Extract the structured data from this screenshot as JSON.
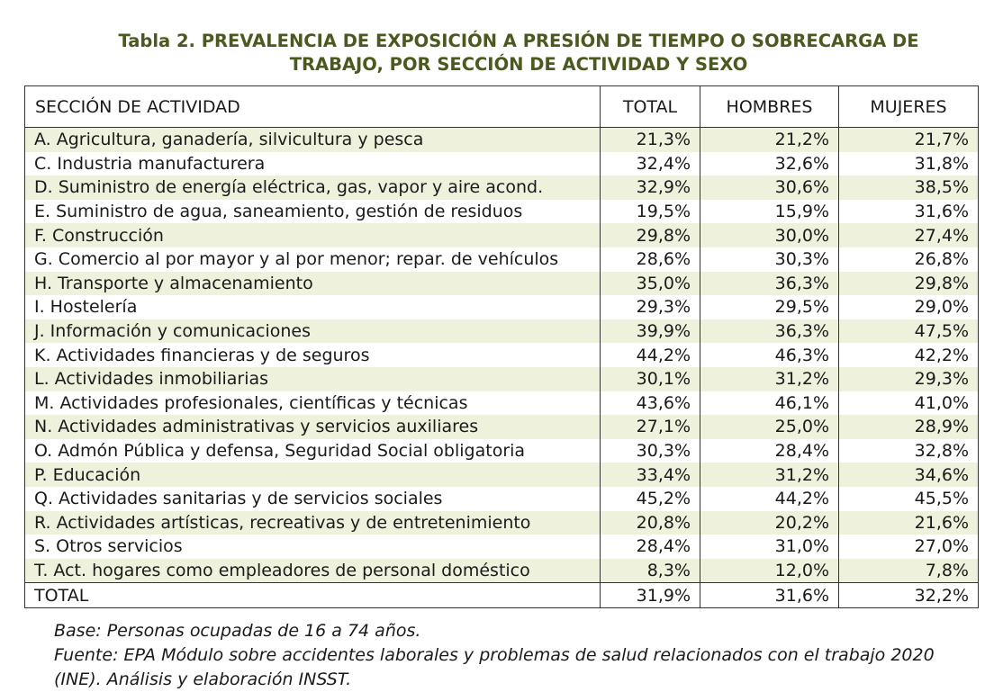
{
  "title": {
    "line1": "Tabla 2. PREVALENCIA DE EXPOSICIÓN A PRESIÓN DE TIEMPO O SOBRECARGA DE",
    "line2": "TRABAJO, POR SECCIÓN DE ACTIVIDAD Y SEXO"
  },
  "headers": [
    "SECCIÓN DE ACTIVIDAD",
    "TOTAL",
    "HOMBRES",
    "MUJERES"
  ],
  "rows": [
    {
      "label": "A. Agricultura, ganadería, silvicultura y pesca",
      "total": "21,3%",
      "hombres": "21,2%",
      "mujeres": "21,7%"
    },
    {
      "label": "C. Industria manufacturera",
      "total": "32,4%",
      "hombres": "32,6%",
      "mujeres": "31,8%"
    },
    {
      "label": "D. Suministro de energía eléctrica, gas, vapor y aire acond.",
      "total": "32,9%",
      "hombres": "30,6%",
      "mujeres": "38,5%"
    },
    {
      "label": "E. Suministro de agua, saneamiento, gestión de residuos",
      "total": "19,5%",
      "hombres": "15,9%",
      "mujeres": "31,6%"
    },
    {
      "label": "F. Construcción",
      "total": "29,8%",
      "hombres": "30,0%",
      "mujeres": "27,4%"
    },
    {
      "label": "G. Comercio al por mayor y al por menor; repar. de vehículos",
      "total": "28,6%",
      "hombres": "30,3%",
      "mujeres": "26,8%"
    },
    {
      "label": "H. Transporte y almacenamiento",
      "total": "35,0%",
      "hombres": "36,3%",
      "mujeres": "29,8%"
    },
    {
      "label": "I. Hostelería",
      "total": "29,3%",
      "hombres": "29,5%",
      "mujeres": "29,0%"
    },
    {
      "label": "J. Información y comunicaciones",
      "total": "39,9%",
      "hombres": "36,3%",
      "mujeres": "47,5%"
    },
    {
      "label": "K. Actividades financieras y de seguros",
      "total": "44,2%",
      "hombres": "46,3%",
      "mujeres": "42,2%"
    },
    {
      "label": "L. Actividades inmobiliarias",
      "total": "30,1%",
      "hombres": "31,2%",
      "mujeres": "29,3%"
    },
    {
      "label": "M. Actividades profesionales, científicas y técnicas",
      "total": "43,6%",
      "hombres": "46,1%",
      "mujeres": "41,0%"
    },
    {
      "label": "N. Actividades administrativas y servicios auxiliares",
      "total": "27,1%",
      "hombres": "25,0%",
      "mujeres": "28,9%"
    },
    {
      "label": "O. Admón Pública y defensa, Seguridad Social obligatoria",
      "total": "30,3%",
      "hombres": "28,4%",
      "mujeres": "32,8%"
    },
    {
      "label": "P. Educación",
      "total": "33,4%",
      "hombres": "31,2%",
      "mujeres": "34,6%"
    },
    {
      "label": "Q. Actividades sanitarias y de servicios sociales",
      "total": "45,2%",
      "hombres": "44,2%",
      "mujeres": "45,5%"
    },
    {
      "label": "R. Actividades artísticas, recreativas y de entretenimiento",
      "total": "20,8%",
      "hombres": "20,2%",
      "mujeres": "21,6%"
    },
    {
      "label": "S. Otros servicios",
      "total": "28,4%",
      "hombres": "31,0%",
      "mujeres": "27,0%"
    },
    {
      "label": "T. Act. hogares como empleadores de personal doméstico",
      "total": "8,3%",
      "hombres": "12,0%",
      "mujeres": "7,8%"
    }
  ],
  "total_row": {
    "label": "TOTAL",
    "total": "31,9%",
    "hombres": "31,6%",
    "mujeres": "32,2%"
  },
  "notes": {
    "base": "Base: Personas ocupadas de 16 a 74 años.",
    "source": "Fuente: EPA Módulo sobre accidentes laborales y problemas de salud relacionados con el trabajo 2020 (INE). Análisis y elaboración INSST."
  },
  "colors": {
    "title": "#4a5a1e",
    "row_shade": "#eef2dc",
    "border": "#333333"
  }
}
